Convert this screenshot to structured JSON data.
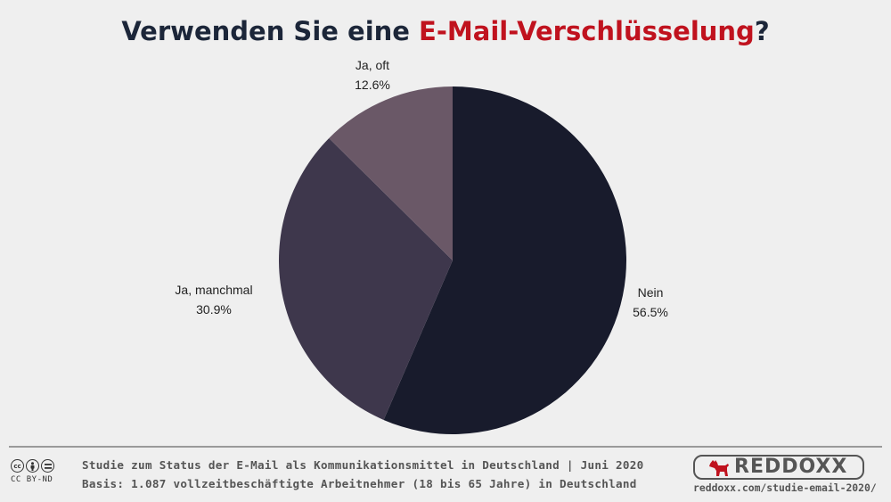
{
  "title": {
    "before": "Verwenden Sie eine ",
    "accent": "E-Mail-Verschlüsselung",
    "after": "?",
    "accent_color": "#c0121e",
    "color": "#1c2639"
  },
  "chart_data": {
    "type": "pie",
    "slices": [
      {
        "label": "Nein",
        "value": 56.5,
        "display": "56.5%",
        "color": "#181b2c"
      },
      {
        "label": "Ja, manchmal",
        "value": 30.9,
        "display": "30.9%",
        "color": "#3e374c"
      },
      {
        "label": "Ja, oft",
        "value": 12.6,
        "display": "12.6%",
        "color": "#6a5867"
      }
    ],
    "start": "12 o'clock",
    "direction": "clockwise"
  },
  "footer": {
    "line1": "Studie zum Status der E-Mail als Kommunikationsmittel in Deutschland | Juni 2020",
    "line2": "Basis: 1.087 vollzeitbeschäftigte Arbeitnehmer (18 bis 65 Jahre) in Deutschland",
    "license": "CC BY-ND",
    "license_icons": [
      "cc-icon",
      "by-icon",
      "nd-icon"
    ],
    "brand_name": "REDDOXX",
    "brand_url": "reddoxx.com/studie-email-2020/",
    "brand_color": "#c0121e"
  }
}
